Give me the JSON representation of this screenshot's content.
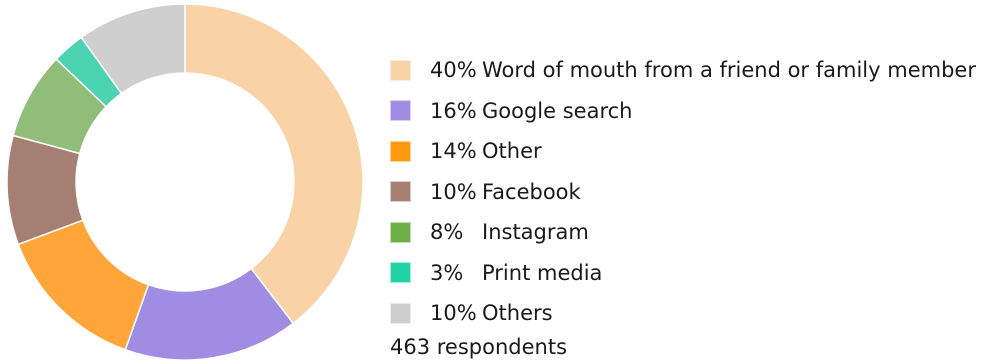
{
  "chart_data": {
    "type": "pie",
    "title": "",
    "categories": [
      "Word of mouth from a friend or family member",
      "Google search",
      "Other",
      "Facebook",
      "Instagram",
      "Print media",
      "Others"
    ],
    "values": [
      40,
      16,
      14,
      10,
      8,
      3,
      10
    ],
    "value_labels": [
      "40%",
      "16%",
      "14%",
      "10%",
      "8%",
      "3%",
      "10%"
    ],
    "colors": [
      "#F9D2A6",
      "#A08CE3",
      "#FFA53A",
      "#A57F73",
      "#90BD77",
      "#4CD4B2",
      "#CFCFCF"
    ],
    "legend_colors": [
      "#F9D2A6",
      "#A08CE3",
      "#FF9A0F",
      "#A57F73",
      "#6FAF48",
      "#20D4A4",
      "#CFCFCF"
    ],
    "donut": true,
    "legend_placement": "right",
    "footnote": "463 respondents"
  }
}
